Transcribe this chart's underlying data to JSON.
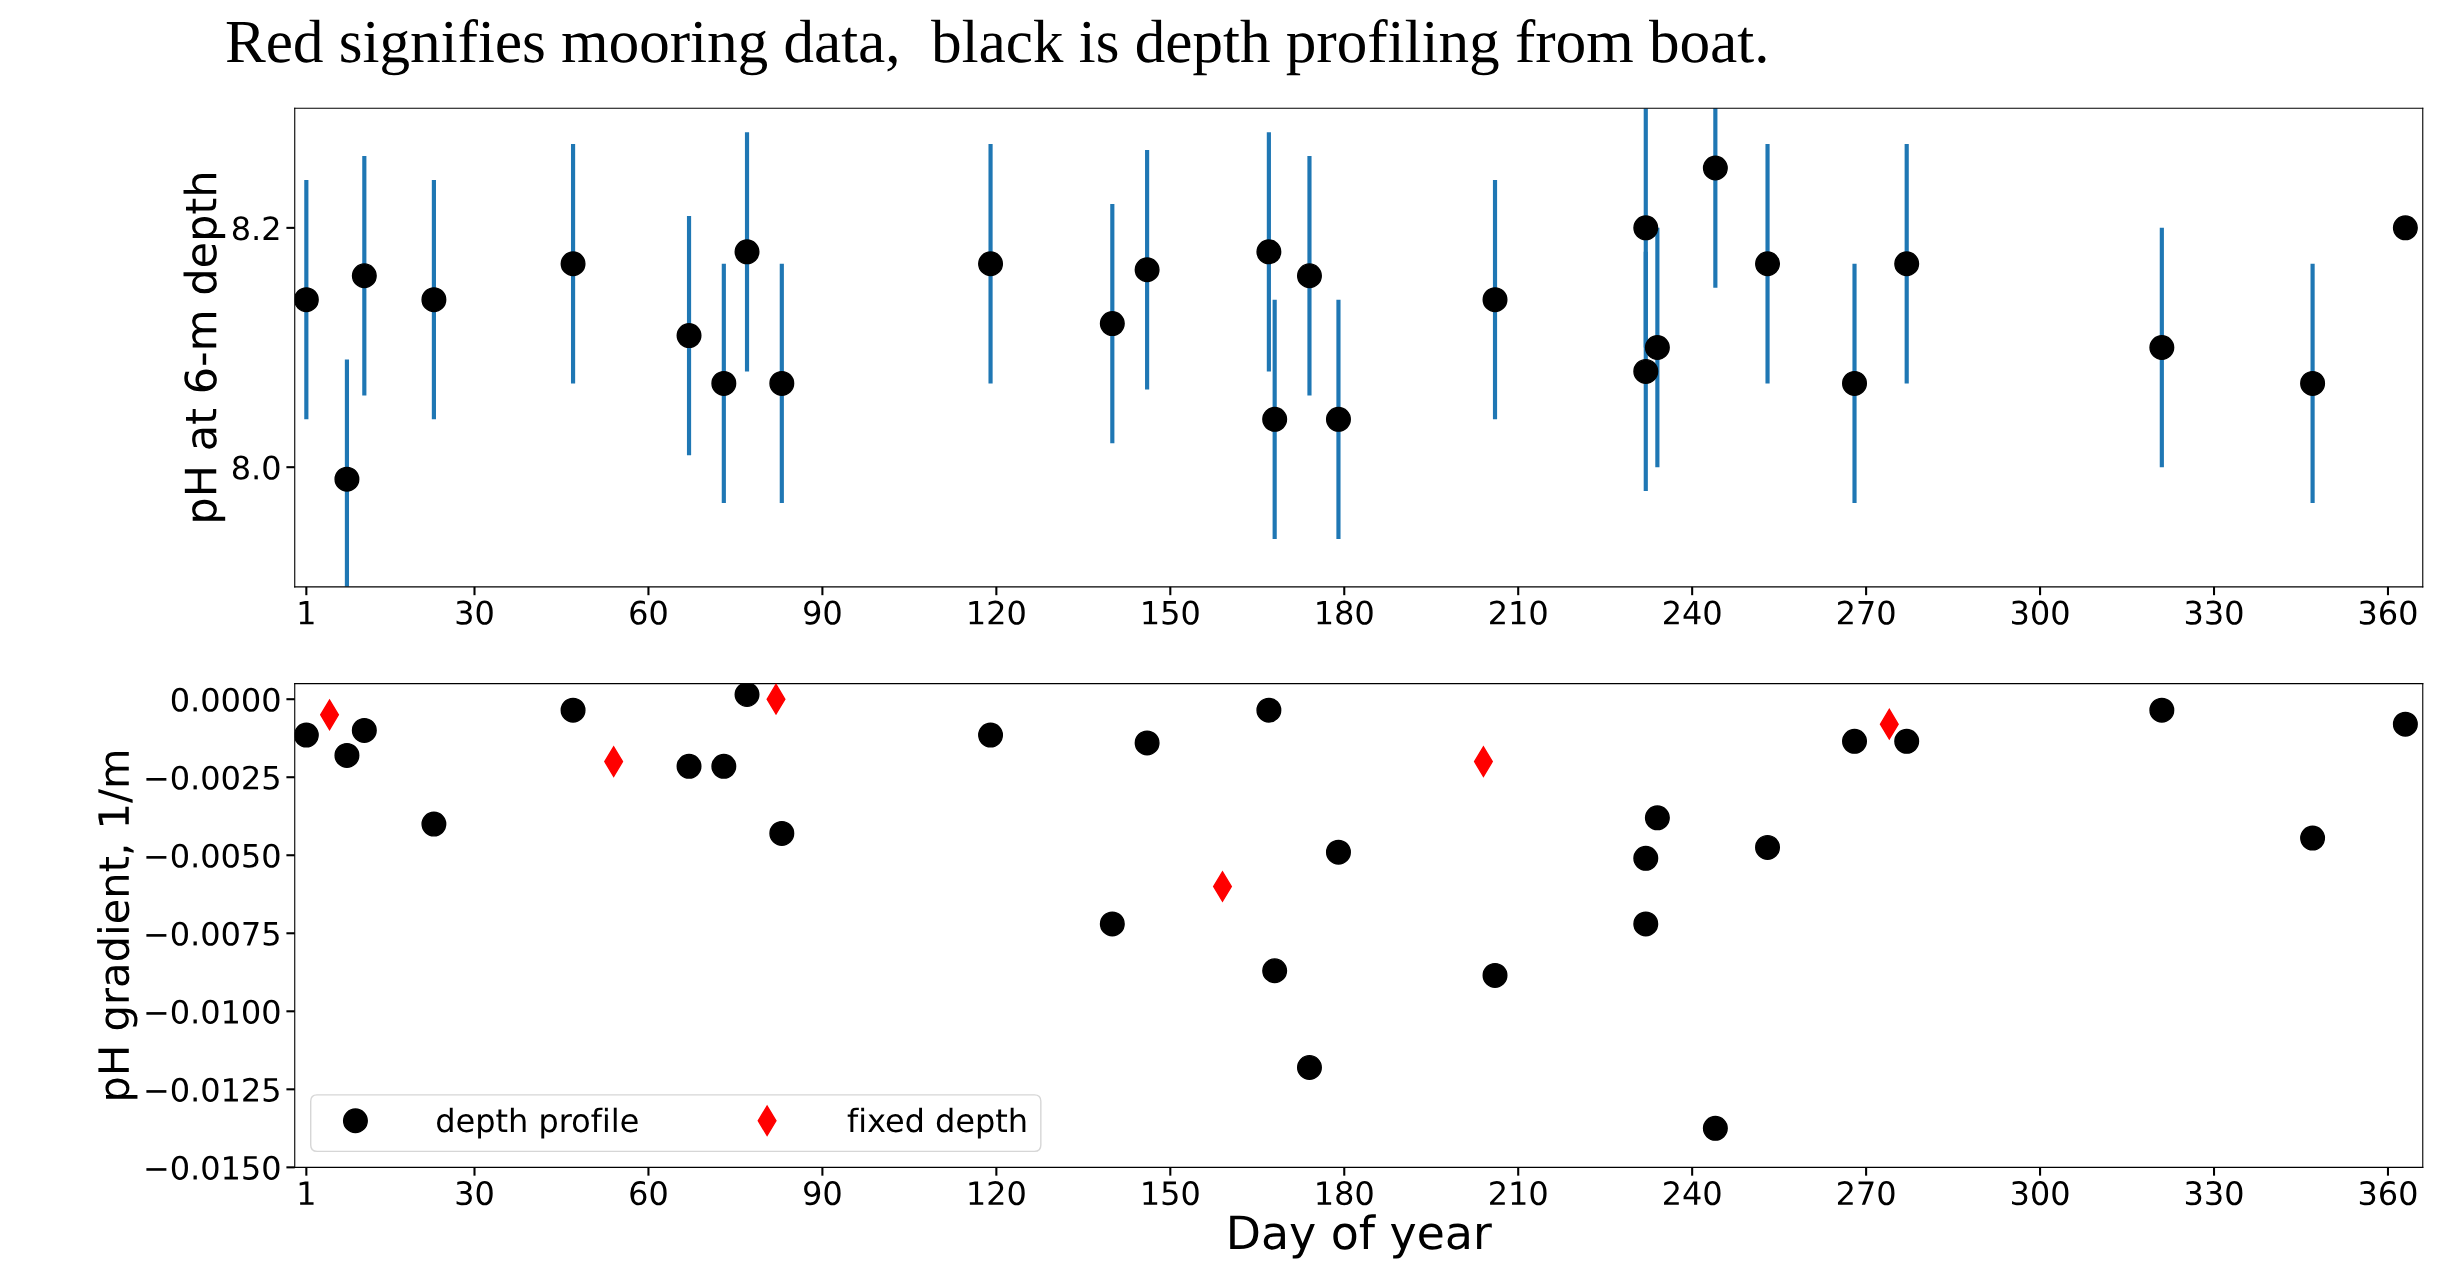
{
  "chart_data": [
    {
      "type": "scatter",
      "title": "Red signifies mooring data,  black is depth profiling from boat.",
      "ylabel": "pH at 6-m depth",
      "xlim": [
        -1,
        366
      ],
      "xticks": [
        1,
        30,
        60,
        90,
        120,
        150,
        180,
        210,
        240,
        270,
        300,
        330,
        360
      ],
      "ylim": [
        7.9,
        8.3
      ],
      "yticks": [
        {
          "value": 8.0,
          "label": "8.0"
        },
        {
          "value": 8.2,
          "label": "8.2"
        }
      ],
      "grid": false,
      "legend": false,
      "marker": "circle",
      "series": [
        {
          "color": "#000000",
          "x": [
            1,
            8,
            11,
            23,
            47,
            67,
            73,
            77,
            83,
            119,
            140,
            146,
            167,
            168,
            174,
            179,
            206,
            232,
            232,
            234,
            244,
            253,
            268,
            277,
            321,
            347,
            363
          ],
          "values": [
            8.14,
            7.99,
            8.16,
            8.14,
            8.17,
            8.11,
            8.07,
            8.18,
            8.07,
            8.17,
            8.12,
            8.165,
            8.18,
            8.04,
            8.16,
            8.04,
            8.14,
            8.2,
            8.08,
            8.1,
            8.25,
            8.17,
            8.07,
            8.17,
            8.1,
            8.07,
            8.2
          ],
          "errors": [
            0.1,
            [
              7.9,
              8.09
            ],
            0.1,
            0.1,
            0.1,
            0.1,
            0.1,
            0.1,
            0.1,
            0.1,
            0.1,
            0.1,
            0.1,
            0.1,
            0.1,
            0.1,
            0.1,
            0.1,
            0.1,
            0.1,
            0.1,
            0.1,
            0.1,
            0.1,
            0.1,
            0.1,
            null
          ]
        }
      ]
    },
    {
      "type": "scatter",
      "xlabel": "Day of year",
      "ylabel": "pH gradient, 1/m",
      "xlim": [
        -1,
        366
      ],
      "xticks": [
        1,
        30,
        60,
        90,
        120,
        150,
        180,
        210,
        240,
        270,
        300,
        330,
        360
      ],
      "ylim": [
        -0.015,
        0.0005
      ],
      "yticks": [
        {
          "value": 0,
          "label": "0.0000"
        },
        {
          "value": -0.0025,
          "label": "−0.0025"
        },
        {
          "value": -0.005,
          "label": "−0.0050"
        },
        {
          "value": -0.0075,
          "label": "−0.0075"
        },
        {
          "value": -0.01,
          "label": "−0.0100"
        },
        {
          "value": -0.0125,
          "label": "−0.0125"
        },
        {
          "value": -0.015,
          "label": "−0.0150"
        }
      ],
      "grid": false,
      "legend": "bottom left",
      "series": [
        {
          "name": "depth profile",
          "color": "#000000",
          "marker": "circle",
          "x": [
            1,
            8,
            11,
            23,
            47,
            67,
            73,
            77,
            83,
            119,
            140,
            146,
            167,
            168,
            174,
            179,
            206,
            232,
            232,
            234,
            244,
            253,
            268,
            277,
            321,
            347,
            363
          ],
          "values": [
            -0.00115,
            -0.0018,
            -0.001,
            -0.004,
            -0.00035,
            -0.00215,
            -0.00215,
            0.00015,
            -0.0043,
            -0.00115,
            -0.0072,
            -0.0014,
            -0.00035,
            -0.0087,
            -0.0118,
            -0.0049,
            -0.00885,
            -0.0051,
            -0.0072,
            -0.0038,
            -0.01375,
            -0.00475,
            -0.00135,
            -0.00135,
            -0.00035,
            -0.00445,
            -0.0008
          ]
        },
        {
          "name": "fixed depth",
          "color": "#ff0000",
          "marker": "diamond",
          "x": [
            5,
            54,
            82,
            159,
            204,
            274
          ],
          "values": [
            -0.0005,
            -0.002,
            0.0,
            -0.006,
            -0.002,
            -0.0008
          ]
        }
      ]
    }
  ]
}
